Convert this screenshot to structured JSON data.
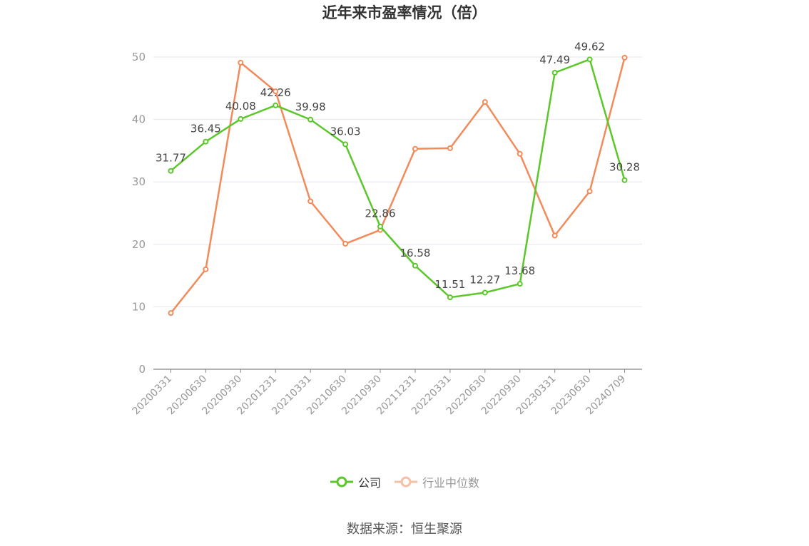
{
  "chart_data": {
    "type": "line",
    "title": "近年来市盈率情况（倍）",
    "categories": [
      "20200331",
      "20200630",
      "20200930",
      "20201231",
      "20210331",
      "20210630",
      "20210930",
      "20211231",
      "20220331",
      "20220630",
      "20220930",
      "20230331",
      "20230630",
      "20240709"
    ],
    "yticks": [
      0,
      10,
      20,
      30,
      40,
      50
    ],
    "ylim": [
      0,
      50
    ],
    "grid": true,
    "legend_position": "bottom",
    "series": [
      {
        "name": "公司",
        "color": "#5cc72b",
        "values": [
          31.77,
          36.45,
          40.08,
          42.26,
          39.98,
          36.03,
          22.86,
          16.58,
          11.51,
          12.27,
          13.68,
          47.49,
          49.62,
          30.28
        ],
        "labels": [
          "31.77",
          "36.45",
          "40.08",
          "42.26",
          "39.98",
          "36.03",
          "22.86",
          "16.58",
          "11.51",
          "12.27",
          "13.68",
          "47.49",
          "49.62",
          "30.28"
        ]
      },
      {
        "name": "行业中位数",
        "color": "#f28b5b",
        "values": [
          9.0,
          16.0,
          49.1,
          44.5,
          26.9,
          20.1,
          22.3,
          35.3,
          35.4,
          42.8,
          34.5,
          21.4,
          28.5,
          49.9
        ]
      }
    ]
  },
  "source_text": "数据来源：恒生聚源"
}
